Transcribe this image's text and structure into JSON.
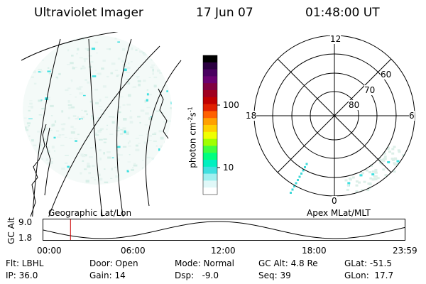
{
  "header": {
    "instrument": "Ultraviolet Imager",
    "date": "17 Jun 07",
    "time": "01:48:00 UT"
  },
  "colorbar": {
    "unit_label": "photon cm",
    "unit_sup1": "-2",
    "unit_mid": "s",
    "unit_sup2": "-1",
    "ticks": [
      "100",
      "10"
    ],
    "colors": [
      "#000000",
      "#2b0040",
      "#4a0060",
      "#6a0070",
      "#800040",
      "#a00020",
      "#c00000",
      "#e02000",
      "#ff6000",
      "#ffa000",
      "#ffd000",
      "#f0ff00",
      "#a0ff00",
      "#40ff40",
      "#00ff80",
      "#00f0c0",
      "#40e0e0",
      "#a0f0f0",
      "#e0f8f8",
      "#ffffff"
    ]
  },
  "polar": {
    "mlt_top": "12",
    "mlt_left": "18",
    "mlt_right": "6",
    "mlt_bottom": "0",
    "lat_labels": [
      "60",
      "70",
      "80"
    ]
  },
  "labels": {
    "geo": "Geographic Lat/Lon",
    "apex": "Apex MLat/MLT"
  },
  "altitude_panel": {
    "axis_label": "GC Alt",
    "ymax": "9.0",
    "ymin": "1.8",
    "xticks": [
      "00:00",
      "06:00",
      "12:00",
      "18:00",
      "23:59"
    ],
    "marker_time_hours": 1.8
  },
  "info": {
    "row1": {
      "flt": "Flt: LBHL",
      "door": "Door: Open",
      "mode": "Mode: Normal",
      "gcalt": "GC Alt: 4.8 Re",
      "glat": "GLat: -51.5"
    },
    "row2": {
      "ip": "IP: 36.0",
      "gain": "Gain: 14",
      "dsp": "Dsp:   -9.0",
      "seq": "Seq: 39",
      "glon": "GLon:  17.7"
    }
  }
}
